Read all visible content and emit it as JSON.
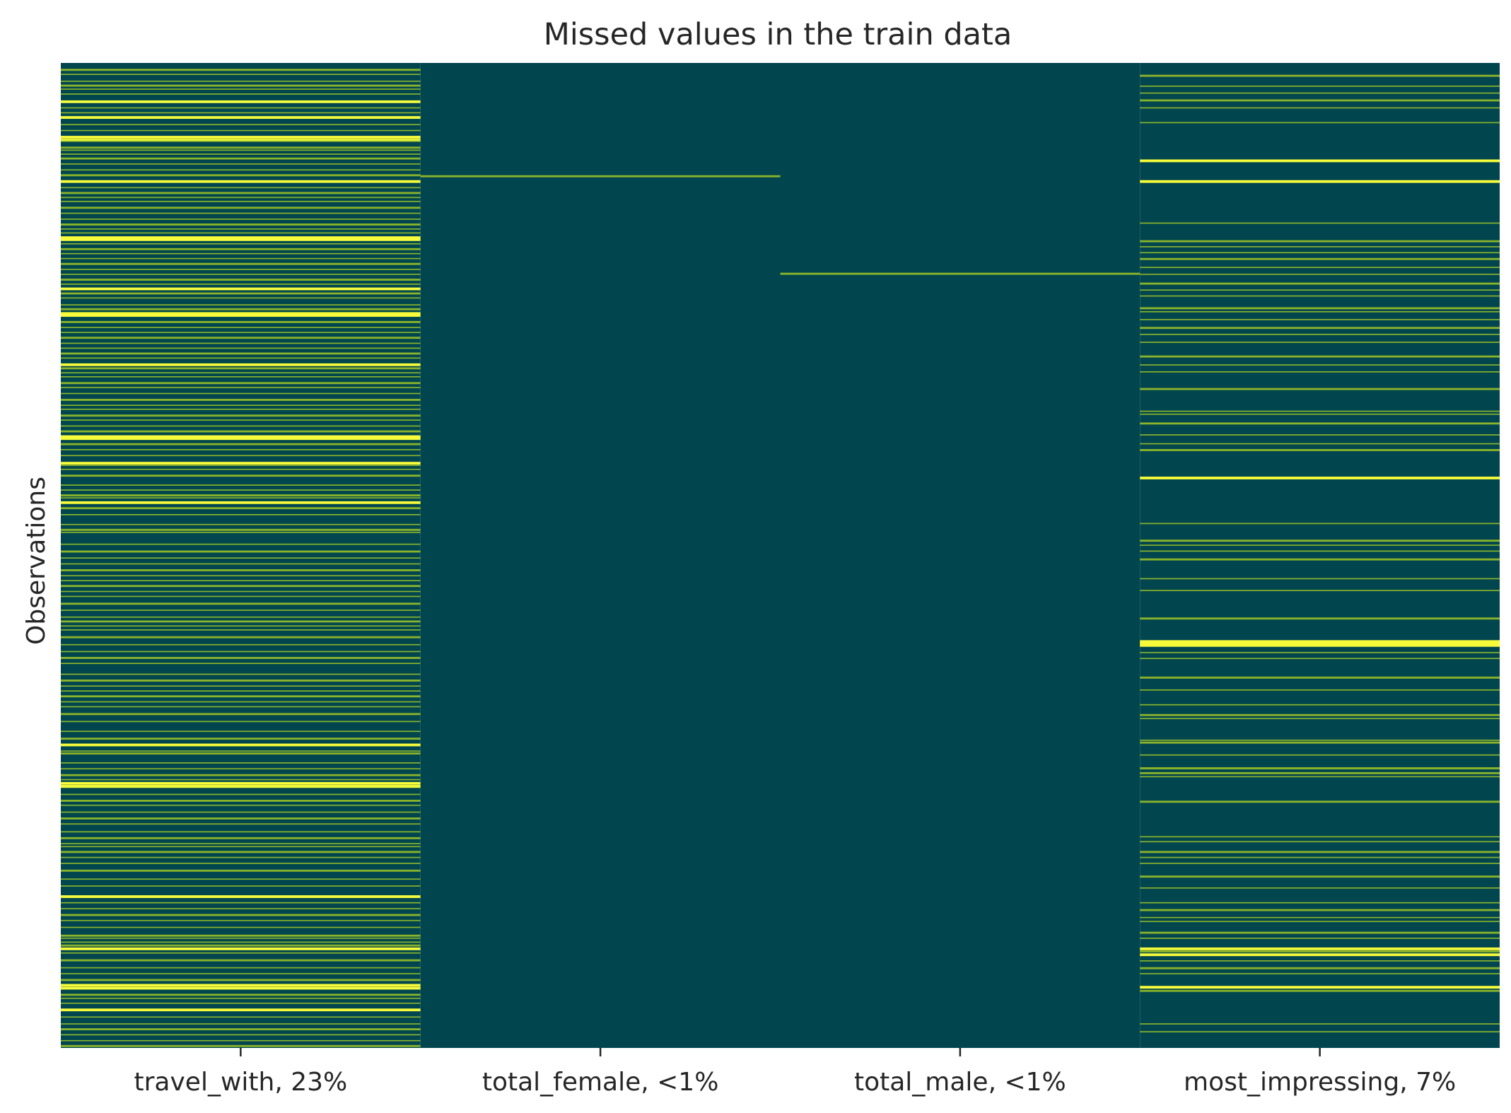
{
  "chart_data": {
    "type": "heatmap",
    "title": "Missed values in the train data",
    "xlabel": "",
    "ylabel": "Observations",
    "grid": false,
    "legend": "none",
    "y_tick_labels_shown": false,
    "colors": {
      "present": "#01464f",
      "missing": "#f7fb3a",
      "missing_dim": "#8ab22a",
      "text": "#262626",
      "background": "#ffffff"
    },
    "columns": [
      {
        "label": "travel_with, 23%",
        "missing_fraction": 0.23,
        "missing_rows": [
          0.006,
          0.011,
          0.018,
          0.022,
          0.026,
          0.031,
          0.038,
          0.045,
          0.05,
          0.054,
          0.062,
          0.068,
          0.074,
          0.077,
          0.079,
          0.085,
          0.088,
          0.092,
          0.096,
          0.102,
          0.108,
          0.113,
          0.119,
          0.126,
          0.131,
          0.136,
          0.14,
          0.146,
          0.152,
          0.158,
          0.163,
          0.168,
          0.172,
          0.176,
          0.178,
          0.183,
          0.188,
          0.193,
          0.198,
          0.203,
          0.209,
          0.214,
          0.219,
          0.224,
          0.228,
          0.233,
          0.238,
          0.245,
          0.249,
          0.253,
          0.255,
          0.262,
          0.268,
          0.273,
          0.278,
          0.284,
          0.289,
          0.294,
          0.299,
          0.305,
          0.309,
          0.314,
          0.318,
          0.324,
          0.329,
          0.335,
          0.341,
          0.347,
          0.351,
          0.357,
          0.362,
          0.368,
          0.373,
          0.378,
          0.38,
          0.386,
          0.392,
          0.398,
          0.405,
          0.408,
          0.412,
          0.418,
          0.428,
          0.433,
          0.438,
          0.441,
          0.445,
          0.451,
          0.458,
          0.468,
          0.473,
          0.476,
          0.488,
          0.495,
          0.502,
          0.508,
          0.514,
          0.52,
          0.525,
          0.53,
          0.536,
          0.541,
          0.548,
          0.555,
          0.562,
          0.566,
          0.571,
          0.575,
          0.582,
          0.59,
          0.597,
          0.603,
          0.609,
          0.62,
          0.626,
          0.632,
          0.637,
          0.642,
          0.648,
          0.653,
          0.66,
          0.668,
          0.678,
          0.685,
          0.691,
          0.698,
          0.7,
          0.71,
          0.716,
          0.722,
          0.727,
          0.73,
          0.734,
          0.733,
          0.742,
          0.748,
          0.753,
          0.76,
          0.766,
          0.772,
          0.78,
          0.786,
          0.792,
          0.795,
          0.8,
          0.806,
          0.812,
          0.819,
          0.828,
          0.835,
          0.845,
          0.852,
          0.858,
          0.864,
          0.87,
          0.877,
          0.885,
          0.888,
          0.892,
          0.895,
          0.898,
          0.903,
          0.91,
          0.918,
          0.924,
          0.93,
          0.935,
          0.938,
          0.945,
          0.949,
          0.954,
          0.96,
          0.968,
          0.975,
          0.98,
          0.986,
          0.992,
          0.997
        ],
        "strong_rows": [
          0.038,
          0.054,
          0.074,
          0.077,
          0.119,
          0.176,
          0.178,
          0.228,
          0.253,
          0.255,
          0.305,
          0.378,
          0.38,
          0.405,
          0.435,
          0.445,
          0.47,
          0.522,
          0.586,
          0.61,
          0.629,
          0.691,
          0.728,
          0.73,
          0.733,
          0.84,
          0.845,
          0.898,
          0.9,
          0.935,
          0.938,
          0.94,
          0.955,
          0.96
        ]
      },
      {
        "label": "total_female, <1%",
        "missing_fraction": 0.003,
        "missing_rows": [
          0.114
        ],
        "strong_rows": []
      },
      {
        "label": "total_male, <1%",
        "missing_fraction": 0.003,
        "missing_rows": [
          0.213
        ],
        "strong_rows": []
      },
      {
        "label": "most_impressing, 7%",
        "missing_fraction": 0.07,
        "missing_rows": [
          0.012,
          0.023,
          0.03,
          0.037,
          0.045,
          0.06,
          0.098,
          0.119,
          0.162,
          0.18,
          0.186,
          0.192,
          0.198,
          0.207,
          0.214,
          0.223,
          0.23,
          0.236,
          0.248,
          0.252,
          0.26,
          0.268,
          0.275,
          0.283,
          0.297,
          0.306,
          0.313,
          0.33,
          0.353,
          0.356,
          0.365,
          0.377,
          0.386,
          0.392,
          0.42,
          0.467,
          0.484,
          0.489,
          0.495,
          0.503,
          0.523,
          0.535,
          0.563,
          0.586,
          0.588,
          0.59,
          0.598,
          0.604,
          0.623,
          0.636,
          0.651,
          0.661,
          0.665,
          0.687,
          0.689,
          0.702,
          0.716,
          0.72,
          0.715,
          0.724,
          0.749,
          0.785,
          0.79,
          0.8,
          0.806,
          0.812,
          0.825,
          0.837,
          0.852,
          0.859,
          0.867,
          0.871,
          0.882,
          0.888,
          0.898,
          0.901,
          0.904,
          0.911,
          0.918,
          0.924,
          0.937,
          0.941,
          0.975,
          0.983
        ],
        "strong_rows": [
          0.098,
          0.119,
          0.42,
          0.586,
          0.588,
          0.59,
          0.898,
          0.904,
          0.937
        ]
      }
    ]
  }
}
